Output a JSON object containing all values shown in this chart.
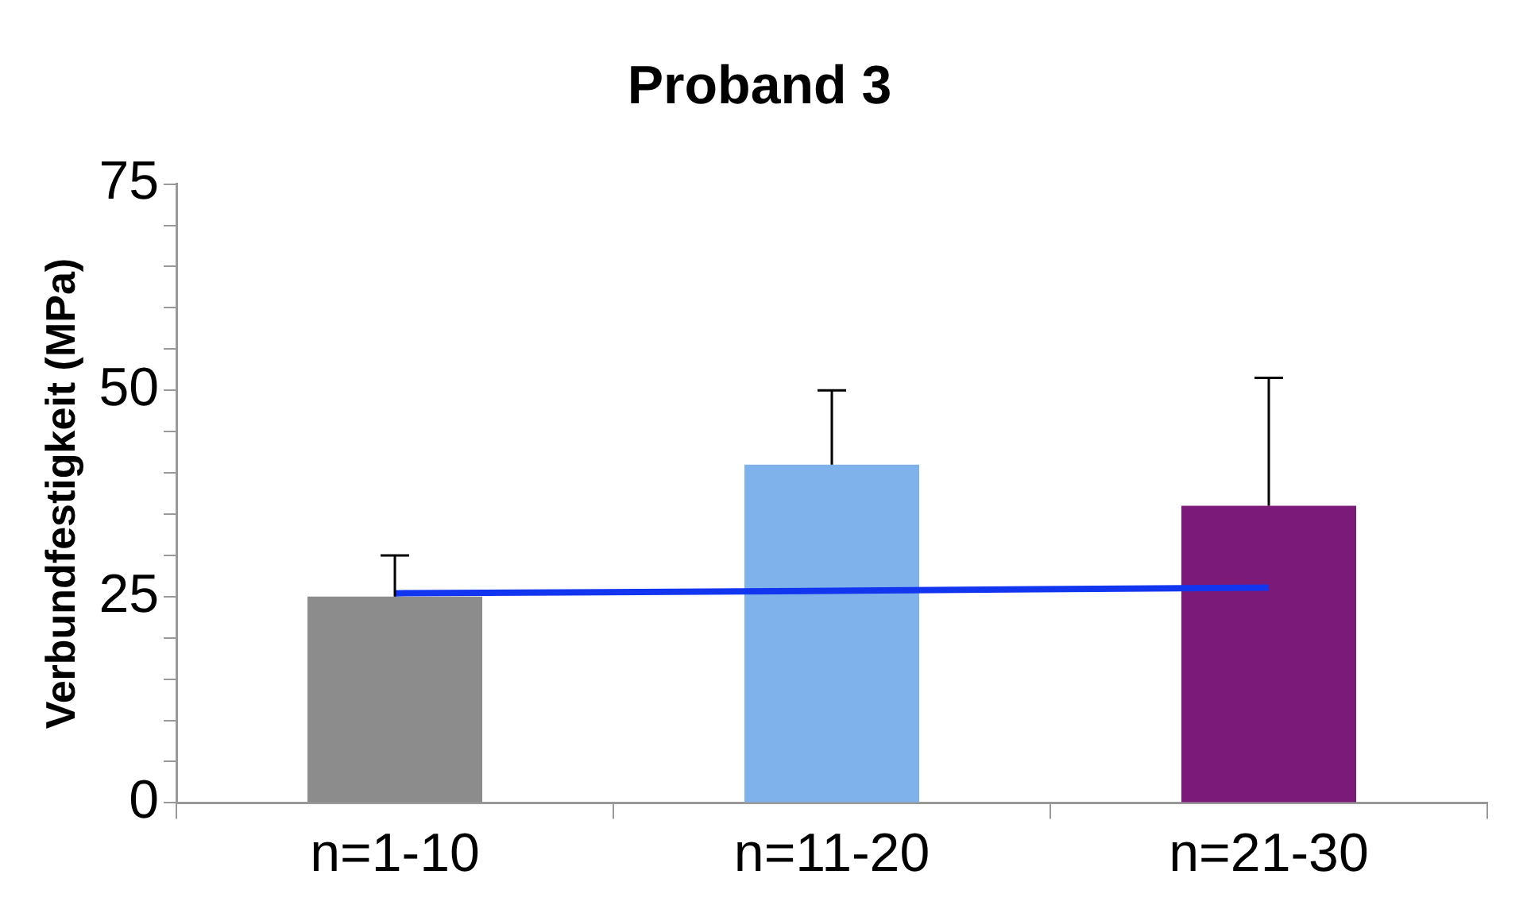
{
  "chart_data": {
    "type": "bar",
    "title": "Proband 3",
    "ylabel": "Verbundfestigkeit (MPa)",
    "categories": [
      "n=1-10",
      "n=11-20",
      "n=21-30"
    ],
    "series": [
      {
        "colors": [
          "#8c8c8c",
          "#7fb2ea",
          "#7b1a78"
        ],
        "values": [
          25,
          41,
          36
        ],
        "errors": [
          [
            25,
            30
          ],
          [
            41,
            50
          ],
          [
            36,
            51.5
          ]
        ]
      },
      {
        "type": "line",
        "color": "#1236f0",
        "values": [
          25.4,
          25.7,
          26.1
        ],
        "marker": "none",
        "line_style": "solid"
      }
    ],
    "ylim": [
      0,
      75
    ],
    "yticks": [
      0,
      {
        "value": 5,
        "label": null
      },
      {
        "value": 10,
        "label": null
      },
      {
        "value": 15,
        "label": null
      },
      {
        "value": 20,
        "label": null
      },
      25,
      {
        "value": 30,
        "label": null
      },
      {
        "value": 35,
        "label": null
      },
      {
        "value": 40,
        "label": null
      },
      {
        "value": 45,
        "label": null
      },
      50,
      {
        "value": 55,
        "label": null
      },
      {
        "value": 60,
        "label": null
      },
      {
        "value": 65,
        "label": null
      },
      {
        "value": 70,
        "label": null
      },
      75
    ],
    "grid": false,
    "legend": false
  }
}
